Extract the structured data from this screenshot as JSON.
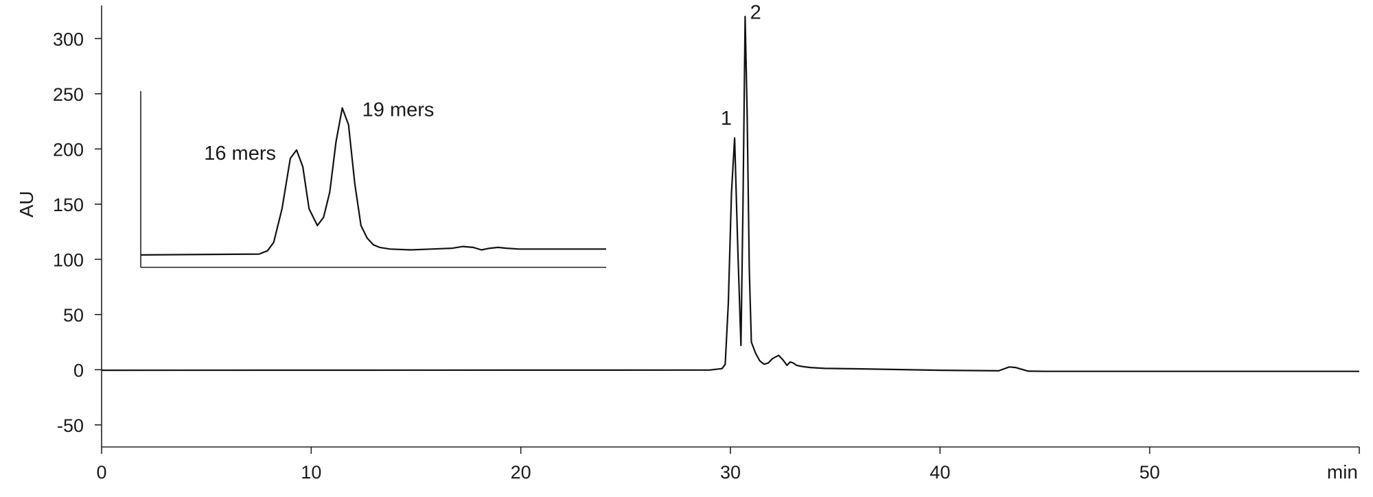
{
  "chart_data": {
    "type": "line",
    "title": "",
    "xlabel": "min",
    "ylabel": "AU",
    "xlim": [
      0,
      60
    ],
    "ylim": [
      -70,
      330
    ],
    "grid": false,
    "legend": "none",
    "x_ticks": [
      {
        "value": 0,
        "label": "0"
      },
      {
        "value": 10,
        "label": "10"
      },
      {
        "value": 20,
        "label": "20"
      },
      {
        "value": 30,
        "label": "30"
      },
      {
        "value": 40,
        "label": "40"
      },
      {
        "value": 50,
        "label": "50"
      }
    ],
    "y_ticks": [
      {
        "value": -50,
        "label": "-50"
      },
      {
        "value": 0,
        "label": "0"
      },
      {
        "value": 50,
        "label": "50"
      },
      {
        "value": 100,
        "label": "100"
      },
      {
        "value": 150,
        "label": "150"
      },
      {
        "value": 200,
        "label": "200"
      },
      {
        "value": 250,
        "label": "250"
      },
      {
        "value": 300,
        "label": "300"
      }
    ],
    "series": [
      {
        "x": [
          0,
          29.0,
          29.6,
          29.75,
          29.9,
          30.05,
          30.2,
          30.35,
          30.5,
          30.6,
          30.7,
          30.8,
          30.9,
          31.0,
          31.2,
          31.4,
          31.6,
          31.8,
          32.0,
          32.3,
          32.5,
          32.7,
          32.85,
          33.0,
          33.15,
          33.4,
          33.8,
          34.5,
          36,
          40,
          42.8,
          43.3,
          43.6,
          44.2,
          45,
          50,
          60
        ],
        "y": [
          -0.5,
          -0.3,
          1,
          5,
          60,
          160,
          210,
          110,
          22,
          150,
          320,
          230,
          90,
          25,
          15,
          8,
          5,
          6,
          10,
          13,
          9,
          4,
          7,
          6,
          4,
          3,
          2,
          1.2,
          0.8,
          -0.5,
          -1,
          2.5,
          2,
          -1.3,
          -1.5,
          -1.5,
          -1.5
        ]
      }
    ],
    "annotations": [
      {
        "text": "1",
        "x": 29.8,
        "y": 222
      },
      {
        "text": "2",
        "x": 31.2,
        "y": 318
      }
    ],
    "inset": {
      "x": [
        0,
        5.7,
        6.1,
        6.4,
        6.8,
        7.2,
        7.5,
        7.8,
        8.1,
        8.5,
        8.8,
        9.1,
        9.4,
        9.7,
        10.0,
        10.3,
        10.6,
        10.9,
        11.2,
        11.5,
        12.0,
        13.0,
        14.0,
        15.0,
        15.5,
        16.0,
        16.4,
        16.8,
        17.2,
        17.6,
        18.2,
        19.0,
        20.0,
        22.4
      ],
      "y": [
        5,
        6,
        10,
        20,
        60,
        120,
        130,
        110,
        60,
        40,
        50,
        80,
        140,
        180,
        160,
        90,
        40,
        25,
        17,
        14,
        12,
        11,
        12,
        13,
        15,
        14,
        11,
        13,
        14,
        13,
        12,
        12,
        12,
        12
      ],
      "labels": [
        "16 mers",
        "19 mers"
      ]
    }
  }
}
